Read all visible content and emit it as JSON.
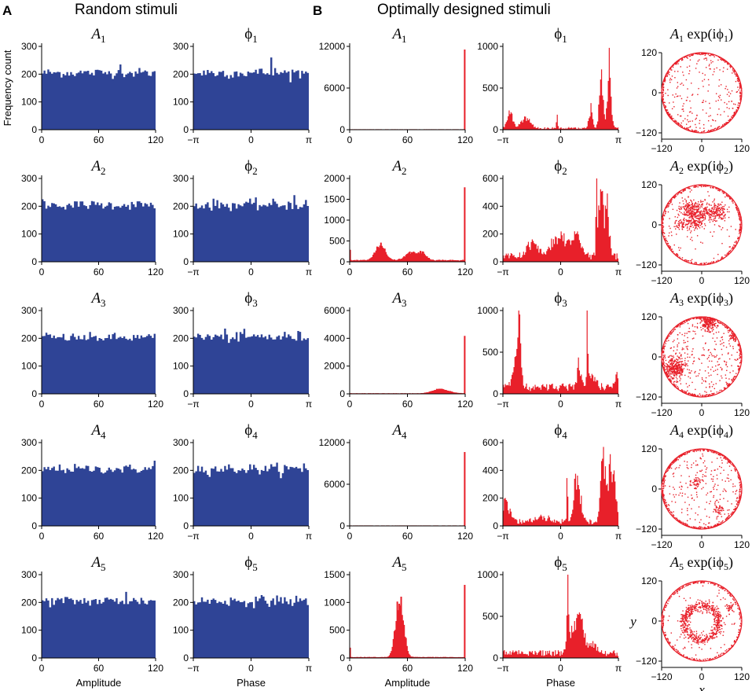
{
  "headings": {
    "panel_a_letter": "A",
    "panel_a_title": "Random stimuli",
    "panel_b_letter": "B",
    "panel_b_title": "Optimally designed stimuli"
  },
  "labels": {
    "y_axis": "Frequency count",
    "amplitude": "Amplitude",
    "phase": "Phase",
    "polar_x": "x",
    "polar_y": "y"
  },
  "colors": {
    "random_bars": "#2f4496",
    "optimal_bars": "#e8202a",
    "axis": "#000000"
  },
  "chart_data": [
    {
      "type": "bar",
      "column": "random-amplitude",
      "description": "Random stimuli amplitude histograms (60 bins, 0–120)",
      "xlim": [
        0,
        120
      ],
      "x_ticks": [
        "0",
        "60",
        "120"
      ],
      "xlabel": "Amplitude",
      "ylabel": "Frequency count",
      "series": [
        {
          "title": "A",
          "sub": "1",
          "ylim": [
            0,
            300
          ],
          "y_ticks": [
            0,
            100,
            200,
            300
          ],
          "mean": 205,
          "spread": 12,
          "spike": {
            "bin": 41,
            "value": 235
          }
        },
        {
          "title": "A",
          "sub": "2",
          "ylim": [
            0,
            300
          ],
          "y_ticks": [
            0,
            100,
            200,
            300
          ],
          "mean": 205,
          "spread": 12,
          "spike": {
            "bin": 0,
            "value": 225
          }
        },
        {
          "title": "A",
          "sub": "3",
          "ylim": [
            0,
            300
          ],
          "y_ticks": [
            0,
            100,
            200,
            300
          ],
          "mean": 202,
          "spread": 12,
          "spike": {
            "bin": 2,
            "value": 220
          }
        },
        {
          "title": "A",
          "sub": "4",
          "ylim": [
            0,
            300
          ],
          "y_ticks": [
            0,
            100,
            200,
            300
          ],
          "mean": 205,
          "spread": 12,
          "spike": {
            "bin": 59,
            "value": 235
          }
        },
        {
          "title": "A",
          "sub": "5",
          "ylim": [
            0,
            300
          ],
          "y_ticks": [
            0,
            100,
            200,
            300
          ],
          "mean": 205,
          "spread": 14,
          "spike": {
            "bin": 44,
            "value": 238
          }
        }
      ]
    },
    {
      "type": "bar",
      "column": "random-phase",
      "description": "Random stimuli phase histograms (60 bins, −π to π)",
      "xlim": [
        -3.1416,
        3.1416
      ],
      "x_ticks": [
        "−π",
        "0",
        "π"
      ],
      "xlabel": "Phase",
      "series": [
        {
          "title": "ϕ",
          "sub": "1",
          "ylim": [
            0,
            300
          ],
          "y_ticks": [
            0,
            100,
            200,
            300
          ],
          "mean": 205,
          "spread": 14,
          "spike": {
            "bin": 40,
            "value": 260
          }
        },
        {
          "title": "ϕ",
          "sub": "2",
          "ylim": [
            0,
            300
          ],
          "y_ticks": [
            0,
            100,
            200,
            300
          ],
          "mean": 205,
          "spread": 14,
          "spike": {
            "bin": 52,
            "value": 240
          }
        },
        {
          "title": "ϕ",
          "sub": "3",
          "ylim": [
            0,
            300
          ],
          "y_ticks": [
            0,
            100,
            200,
            300
          ],
          "mean": 205,
          "spread": 15,
          "spike": {
            "bin": 16,
            "value": 235
          }
        },
        {
          "title": "ϕ",
          "sub": "4",
          "ylim": [
            0,
            300
          ],
          "y_ticks": [
            0,
            100,
            200,
            300
          ],
          "mean": 205,
          "spread": 14,
          "spike": {
            "bin": 57,
            "value": 225
          }
        },
        {
          "title": "ϕ",
          "sub": "5",
          "ylim": [
            0,
            300
          ],
          "y_ticks": [
            0,
            100,
            200,
            300
          ],
          "mean": 205,
          "spread": 14,
          "spike": {
            "bin": 43,
            "value": 225
          }
        }
      ]
    },
    {
      "type": "area",
      "column": "optimal-amplitude",
      "description": "Optimally designed stimuli amplitude histograms",
      "xlim": [
        0,
        120
      ],
      "x_ticks": [
        "0",
        "60",
        "120"
      ],
      "xlabel": "Amplitude",
      "series": [
        {
          "title": "A",
          "sub": "1",
          "ylim": [
            0,
            12000
          ],
          "y_ticks": [
            0,
            6000,
            12000
          ],
          "peak_at_120": 11500,
          "base": 20,
          "edge_at_0": 0,
          "bumps": []
        },
        {
          "title": "A",
          "sub": "2",
          "ylim": [
            0,
            2000
          ],
          "y_ticks": [
            0,
            500,
            1000,
            1500,
            2000
          ],
          "peak_at_120": 1780,
          "base": 30,
          "edge_at_0": 280,
          "bumps": [
            {
              "center": 32,
              "width": 5,
              "height": 380
            },
            {
              "center": 64,
              "width": 6,
              "height": 190
            },
            {
              "center": 76,
              "width": 4,
              "height": 170
            }
          ]
        },
        {
          "title": "A",
          "sub": "3",
          "ylim": [
            0,
            6000
          ],
          "y_ticks": [
            0,
            2000,
            4000,
            6000
          ],
          "peak_at_120": 4150,
          "base": 20,
          "edge_at_0": 0,
          "bumps": [
            {
              "center": 95,
              "width": 8,
              "height": 330
            }
          ]
        },
        {
          "title": "A",
          "sub": "4",
          "ylim": [
            0,
            12000
          ],
          "y_ticks": [
            0,
            6000,
            12000
          ],
          "peak_at_120": 10600,
          "base": 20,
          "edge_at_0": 0,
          "bumps": []
        },
        {
          "title": "A",
          "sub": "5",
          "ylim": [
            0,
            1500
          ],
          "y_ticks": [
            0,
            500,
            1000,
            1500
          ],
          "peak_at_120": 1310,
          "base": 10,
          "edge_at_0": 180,
          "bumps": [
            {
              "center": 52,
              "width": 4,
              "height": 1130
            }
          ]
        }
      ]
    },
    {
      "type": "area",
      "column": "optimal-phase",
      "description": "Optimally designed stimuli phase histograms",
      "xlim": [
        -3.1416,
        3.1416
      ],
      "x_ticks": [
        "−π",
        "0",
        "π"
      ],
      "xlabel": "Phase",
      "series": [
        {
          "title": "ϕ",
          "sub": "1",
          "ylim": [
            0,
            1000
          ],
          "y_ticks": [
            0,
            500,
            1000
          ],
          "base": 20,
          "bumps": [
            {
              "center": -2.75,
              "width": 0.15,
              "height": 200
            },
            {
              "center": -1.9,
              "width": 0.25,
              "height": 130
            },
            {
              "center": -0.2,
              "width": 0.03,
              "height": 200
            },
            {
              "center": 1.65,
              "width": 0.1,
              "height": 260
            },
            {
              "center": 2.2,
              "width": 0.1,
              "height": 720
            },
            {
              "center": 2.65,
              "width": 0.1,
              "height": 860
            }
          ]
        },
        {
          "title": "ϕ",
          "sub": "2",
          "ylim": [
            0,
            600
          ],
          "y_ticks": [
            0,
            200,
            400,
            600
          ],
          "base": 40,
          "bumps": [
            {
              "center": -1.5,
              "width": 0.3,
              "height": 110
            },
            {
              "center": 0.0,
              "width": 0.45,
              "height": 170
            },
            {
              "center": 0.9,
              "width": 0.25,
              "height": 150
            },
            {
              "center": 1.95,
              "width": 0.03,
              "height": 590
            },
            {
              "center": 2.2,
              "width": 0.12,
              "height": 560
            },
            {
              "center": 2.55,
              "width": 0.12,
              "height": 400
            }
          ]
        },
        {
          "title": "ϕ",
          "sub": "3",
          "ylim": [
            0,
            1000
          ],
          "y_ticks": [
            0,
            500,
            1000
          ],
          "base": 80,
          "bumps": [
            {
              "center": -2.25,
              "width": 0.1,
              "height": 850
            },
            {
              "center": -2.5,
              "width": 0.15,
              "height": 300
            },
            {
              "center": 1.0,
              "width": 0.1,
              "height": 330
            },
            {
              "center": 1.45,
              "width": 0.03,
              "height": 950
            },
            {
              "center": 1.7,
              "width": 0.2,
              "height": 160
            },
            {
              "center": 3.05,
              "width": 0.08,
              "height": 200
            }
          ]
        },
        {
          "title": "ϕ",
          "sub": "4",
          "ylim": [
            0,
            600
          ],
          "y_ticks": [
            0,
            200,
            400,
            600
          ],
          "base": 30,
          "bumps": [
            {
              "center": -3.0,
              "width": 0.25,
              "height": 150
            },
            {
              "center": -1.0,
              "width": 0.4,
              "height": 40
            },
            {
              "center": 0.35,
              "width": 0.03,
              "height": 440
            },
            {
              "center": 0.9,
              "width": 0.18,
              "height": 360
            },
            {
              "center": 2.3,
              "width": 0.12,
              "height": 560
            },
            {
              "center": 2.75,
              "width": 0.2,
              "height": 460
            }
          ]
        },
        {
          "title": "ϕ",
          "sub": "5",
          "ylim": [
            0,
            1000
          ],
          "y_ticks": [
            0,
            500,
            1000
          ],
          "base": 60,
          "bumps": [
            {
              "center": 0.38,
              "width": 0.03,
              "height": 1060
            },
            {
              "center": 0.45,
              "width": 0.15,
              "height": 300
            },
            {
              "center": 1.0,
              "width": 0.25,
              "height": 480
            },
            {
              "center": 1.8,
              "width": 0.2,
              "height": 130
            }
          ]
        }
      ]
    },
    {
      "type": "scatter",
      "column": "polar",
      "description": "Complex-plane scatter of A_k exp(iϕ_k)",
      "xlim": [
        -120,
        120
      ],
      "ylim": [
        -120,
        120
      ],
      "x_ticks": [
        "−120",
        "0",
        "120"
      ],
      "y_ticks": [
        "120",
        "0",
        "−120"
      ],
      "xlabel": "x",
      "ylabel": "y",
      "series": [
        {
          "title": "A",
          "sub": "1",
          "expr": "exp(iϕ",
          "sub2": "1",
          "close": ")",
          "ring_points": 420,
          "interior_points": 180,
          "clusters": [
            {
              "x": -105,
              "y": -70,
              "r": 12,
              "n": 60
            }
          ]
        },
        {
          "title": "A",
          "sub": "2",
          "expr": "exp(iϕ",
          "sub2": "2",
          "close": ")",
          "ring_points": 380,
          "interior_points": 80,
          "clusters": [
            {
              "x": -40,
              "y": 45,
              "r": 25,
              "n": 150
            },
            {
              "x": 0,
              "y": 40,
              "r": 25,
              "n": 150
            },
            {
              "x": 45,
              "y": 40,
              "r": 25,
              "n": 150
            },
            {
              "x": -20,
              "y": 5,
              "r": 20,
              "n": 90
            },
            {
              "x": -60,
              "y": 0,
              "r": 20,
              "n": 60
            }
          ]
        },
        {
          "title": "A",
          "sub": "3",
          "expr": "exp(iϕ",
          "sub2": "3",
          "close": ")",
          "ring_points": 400,
          "interior_points": 260,
          "clusters": [
            {
              "x": -80,
              "y": -35,
              "r": 28,
              "n": 320
            },
            {
              "x": 20,
              "y": 100,
              "r": 18,
              "n": 180
            },
            {
              "x": 95,
              "y": 60,
              "r": 10,
              "n": 40
            }
          ]
        },
        {
          "title": "A",
          "sub": "4",
          "expr": "exp(iϕ",
          "sub2": "4",
          "close": ")",
          "ring_points": 460,
          "interior_points": 200,
          "clusters": [
            {
              "x": 50,
              "y": -60,
              "r": 12,
              "n": 40
            },
            {
              "x": -15,
              "y": 20,
              "r": 15,
              "n": 40
            }
          ]
        },
        {
          "title": "A",
          "sub": "5",
          "expr": "exp(iϕ",
          "sub2": "5",
          "close": ")",
          "ring_points": 320,
          "interior_points": 60,
          "annulus": {
            "r": 52,
            "w": 12,
            "n": 600
          },
          "clusters": [
            {
              "x": 85,
              "y": 40,
              "r": 10,
              "n": 30
            }
          ]
        }
      ]
    }
  ]
}
